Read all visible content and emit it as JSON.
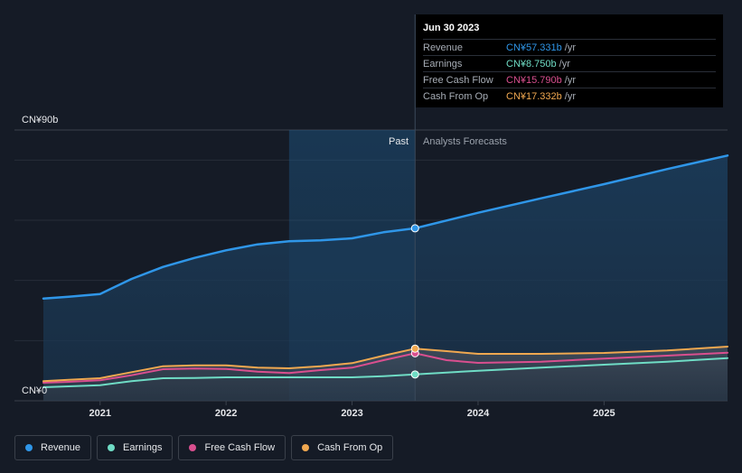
{
  "chart_data": {
    "type": "line",
    "title": "",
    "xlabel": "",
    "ylabel": "",
    "y_top_label": "CN¥90b",
    "y_bottom_label": "CN¥0",
    "ylim": [
      0,
      90
    ],
    "xlim": [
      2020.55,
      2025.98
    ],
    "x_ticks": [
      {
        "value": 2021,
        "label": "2021"
      },
      {
        "value": 2022,
        "label": "2022"
      },
      {
        "value": 2023,
        "label": "2023"
      },
      {
        "value": 2024,
        "label": "2024"
      },
      {
        "value": 2025,
        "label": "2025"
      }
    ],
    "grid_values": [
      20,
      40,
      60,
      80
    ],
    "past_label": "Past",
    "forecast_label": "Analysts Forecasts",
    "past_band_start": 2022.5,
    "divider_x": 2023.5,
    "series": [
      {
        "key": "revenue",
        "name": "Revenue",
        "color": "#2f96e8",
        "points": [
          [
            2020.55,
            34.0
          ],
          [
            2020.75,
            34.6
          ],
          [
            2021.0,
            35.5
          ],
          [
            2021.25,
            40.5
          ],
          [
            2021.5,
            44.5
          ],
          [
            2021.75,
            47.5
          ],
          [
            2022.0,
            50.0
          ],
          [
            2022.25,
            52.0
          ],
          [
            2022.5,
            53.0
          ],
          [
            2022.75,
            53.3
          ],
          [
            2023.0,
            54.0
          ],
          [
            2023.25,
            56.0
          ],
          [
            2023.5,
            57.331
          ],
          [
            2024.0,
            62.5
          ],
          [
            2024.5,
            67.3
          ],
          [
            2025.0,
            72.0
          ],
          [
            2025.5,
            77.0
          ],
          [
            2025.98,
            81.5
          ]
        ]
      },
      {
        "key": "earnings",
        "name": "Earnings",
        "color": "#6fdcc5",
        "points": [
          [
            2020.55,
            4.5
          ],
          [
            2020.75,
            4.8
          ],
          [
            2021.0,
            5.2
          ],
          [
            2021.25,
            6.5
          ],
          [
            2021.5,
            7.5
          ],
          [
            2021.75,
            7.6
          ],
          [
            2022.0,
            7.8
          ],
          [
            2022.25,
            7.8
          ],
          [
            2022.5,
            7.8
          ],
          [
            2022.75,
            7.8
          ],
          [
            2023.0,
            7.8
          ],
          [
            2023.25,
            8.2
          ],
          [
            2023.5,
            8.75
          ],
          [
            2024.0,
            10.0
          ],
          [
            2024.5,
            11.0
          ],
          [
            2025.0,
            12.0
          ],
          [
            2025.5,
            13.0
          ],
          [
            2025.98,
            14.2
          ]
        ]
      },
      {
        "key": "fcf",
        "name": "Free Cash Flow",
        "color": "#d94f8f",
        "points": [
          [
            2020.55,
            6.0
          ],
          [
            2020.75,
            6.3
          ],
          [
            2021.0,
            6.8
          ],
          [
            2021.25,
            8.5
          ],
          [
            2021.5,
            10.5
          ],
          [
            2021.75,
            10.7
          ],
          [
            2022.0,
            10.6
          ],
          [
            2022.25,
            9.7
          ],
          [
            2022.5,
            9.2
          ],
          [
            2022.75,
            10.2
          ],
          [
            2023.0,
            11.0
          ],
          [
            2023.25,
            13.5
          ],
          [
            2023.5,
            15.79
          ],
          [
            2023.75,
            13.5
          ],
          [
            2024.0,
            12.6
          ],
          [
            2024.5,
            13.0
          ],
          [
            2025.0,
            14.0
          ],
          [
            2025.5,
            15.0
          ],
          [
            2025.98,
            16.0
          ]
        ]
      },
      {
        "key": "cfo",
        "name": "Cash From Op",
        "color": "#f0a850",
        "points": [
          [
            2020.55,
            6.5
          ],
          [
            2020.75,
            7.0
          ],
          [
            2021.0,
            7.5
          ],
          [
            2021.25,
            9.5
          ],
          [
            2021.5,
            11.5
          ],
          [
            2021.75,
            11.8
          ],
          [
            2022.0,
            11.8
          ],
          [
            2022.25,
            11.0
          ],
          [
            2022.5,
            10.8
          ],
          [
            2022.75,
            11.5
          ],
          [
            2023.0,
            12.5
          ],
          [
            2023.25,
            15.0
          ],
          [
            2023.5,
            17.332
          ],
          [
            2023.75,
            16.5
          ],
          [
            2024.0,
            15.6
          ],
          [
            2024.5,
            15.6
          ],
          [
            2025.0,
            15.9
          ],
          [
            2025.5,
            16.7
          ],
          [
            2025.98,
            18.0
          ]
        ]
      }
    ],
    "tooltip": {
      "date": "Jun 30 2023",
      "rows": [
        {
          "label": "Revenue",
          "value": "CN¥57.331b",
          "unit": "/yr",
          "color": "#2f96e8"
        },
        {
          "label": "Earnings",
          "value": "CN¥8.750b",
          "unit": "/yr",
          "color": "#6fdcc5"
        },
        {
          "label": "Free Cash Flow",
          "value": "CN¥15.790b",
          "unit": "/yr",
          "color": "#d94f8f"
        },
        {
          "label": "Cash From Op",
          "value": "CN¥17.332b",
          "unit": "/yr",
          "color": "#f0a850"
        }
      ]
    }
  },
  "legend": [
    {
      "label": "Revenue",
      "color": "#2f96e8"
    },
    {
      "label": "Earnings",
      "color": "#6fdcc5"
    },
    {
      "label": "Free Cash Flow",
      "color": "#d94f8f"
    },
    {
      "label": "Cash From Op",
      "color": "#f0a850"
    }
  ]
}
